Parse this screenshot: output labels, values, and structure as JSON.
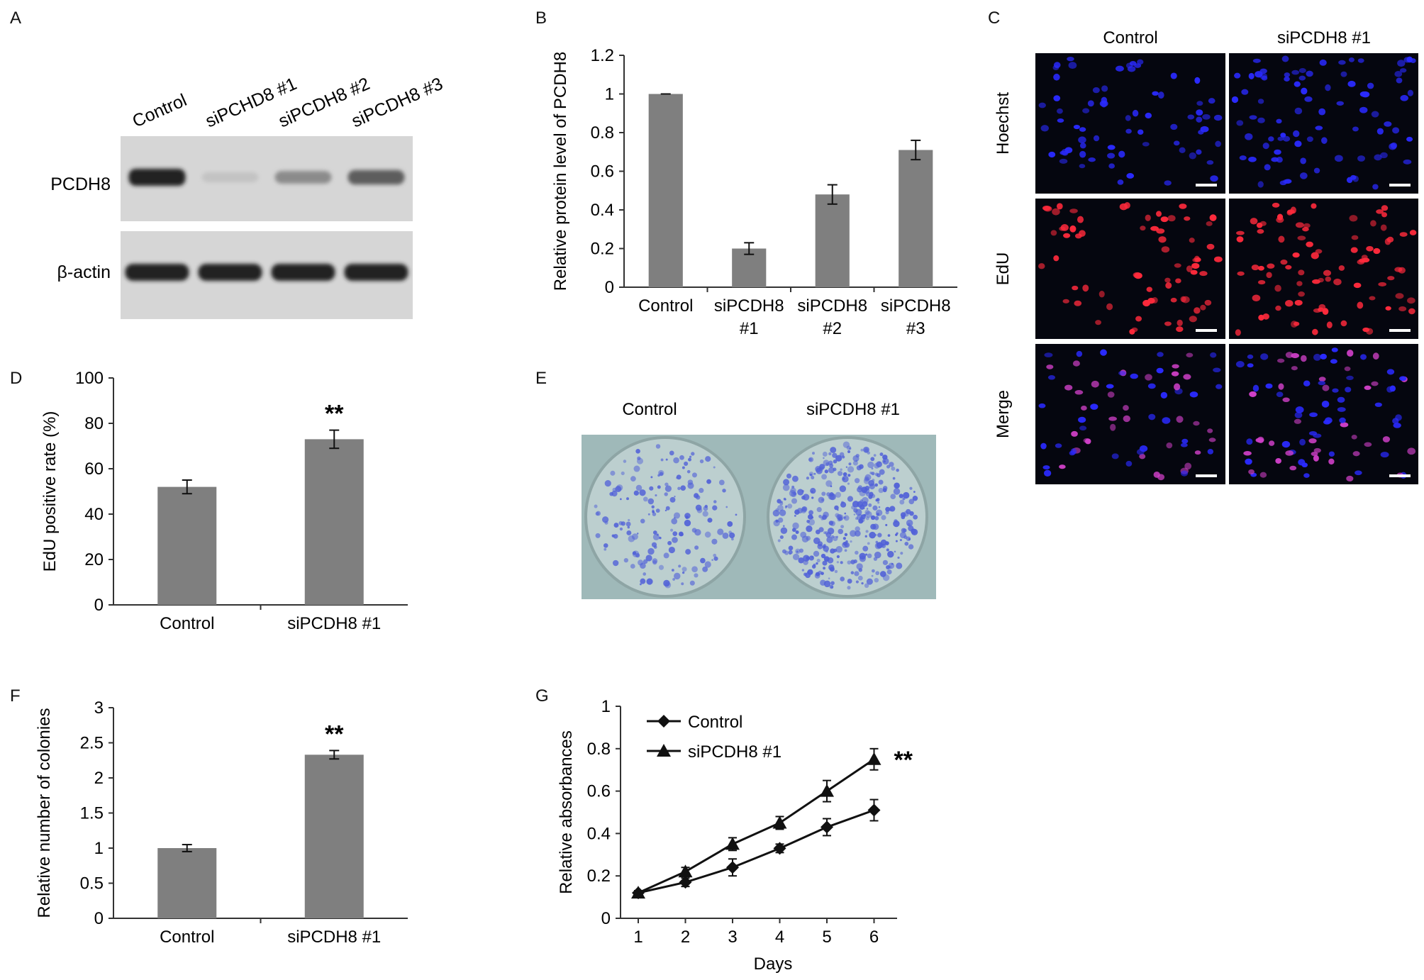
{
  "panels": {
    "A": {
      "letter": "A",
      "lanes": [
        "Control",
        "siPCHD8 #1",
        "siPCDH8 #2",
        "siPCDH8 #3"
      ],
      "rows": [
        "PCDH8",
        "β-actin"
      ],
      "band_intensity": {
        "PCDH8": [
          1.0,
          0.2,
          0.48,
          0.71
        ],
        "beta_actin": [
          1.0,
          1.0,
          1.0,
          1.0
        ]
      }
    },
    "C": {
      "letter": "C",
      "columns": [
        "Control",
        "siPCDH8 #1"
      ],
      "rows": [
        "Hoechst",
        "EdU",
        "Merge"
      ],
      "colors": {
        "hoechst": "#2a2aff",
        "edu": "#ff2a3c",
        "merge": "#d040c8"
      }
    },
    "E": {
      "letter": "E",
      "columns": [
        "Control",
        "siPCDH8 #1"
      ],
      "colors": {
        "background": "#9fb9b9",
        "dish": "#bccfcf",
        "colony": "#5060d8"
      },
      "relative_colony_density": [
        1.0,
        2.33
      ]
    }
  },
  "chart_data": [
    {
      "id": "B",
      "letter": "B",
      "type": "bar",
      "categories": [
        [
          "Control"
        ],
        [
          "siPCDH8",
          "#1"
        ],
        [
          "siPCDH8",
          "#2"
        ],
        [
          "siPCDH8",
          "#3"
        ]
      ],
      "values": [
        1.0,
        0.2,
        0.48,
        0.71
      ],
      "errors": [
        0.0,
        0.03,
        0.05,
        0.05
      ],
      "ylabel": "Relative protein level of PCDH8",
      "ylim": [
        0,
        1.2
      ],
      "yticks": [
        0,
        0.2,
        0.4,
        0.6,
        0.8,
        1,
        1.2
      ],
      "annotations": [],
      "bar_color": "#7f7f7f"
    },
    {
      "id": "D",
      "letter": "D",
      "type": "bar",
      "categories": [
        [
          "Control"
        ],
        [
          "siPCDH8 #1"
        ]
      ],
      "values": [
        52,
        73
      ],
      "errors": [
        3,
        4
      ],
      "ylabel": "EdU positive rate (%)",
      "ylim": [
        0,
        100
      ],
      "yticks": [
        0,
        20,
        40,
        60,
        80,
        100
      ],
      "annotations": [
        "",
        "**"
      ],
      "bar_color": "#7f7f7f"
    },
    {
      "id": "F",
      "letter": "F",
      "type": "bar",
      "categories": [
        [
          "Control"
        ],
        [
          "siPCDH8 #1"
        ]
      ],
      "values": [
        1.0,
        2.33
      ],
      "errors": [
        0.05,
        0.06
      ],
      "ylabel": "Relative number of colonies",
      "ylim": [
        0,
        3
      ],
      "yticks": [
        0,
        0.5,
        1,
        1.5,
        2,
        2.5,
        3
      ],
      "annotations": [
        "",
        "**"
      ],
      "bar_color": "#7f7f7f"
    },
    {
      "id": "G",
      "letter": "G",
      "type": "line",
      "x": [
        1,
        2,
        3,
        4,
        5,
        6
      ],
      "series": [
        {
          "name": "Control",
          "marker": "diamond",
          "values": [
            0.12,
            0.17,
            0.24,
            0.33,
            0.43,
            0.51
          ],
          "errors": [
            0.01,
            0.02,
            0.04,
            0.02,
            0.04,
            0.05
          ]
        },
        {
          "name": "siPCDH8 #1",
          "marker": "triangle",
          "values": [
            0.12,
            0.22,
            0.35,
            0.45,
            0.6,
            0.75
          ],
          "errors": [
            0.01,
            0.02,
            0.03,
            0.03,
            0.05,
            0.05
          ]
        }
      ],
      "xlabel": "Days",
      "ylabel": "Relative absorbances",
      "ylim": [
        0,
        1
      ],
      "yticks": [
        0,
        0.2,
        0.4,
        0.6,
        0.8,
        1
      ],
      "annotation": "**",
      "legend": "top-left"
    }
  ]
}
